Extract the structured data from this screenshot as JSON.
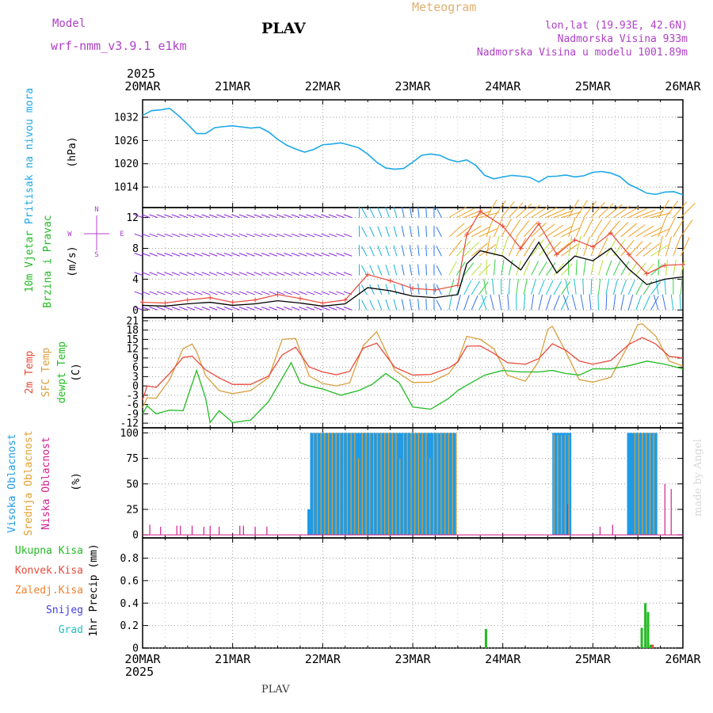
{
  "header": {
    "model_label": "Model",
    "model_name": "wrf-nmm_v3.9.1 e1km",
    "station": "PLAV",
    "title": "Meteogram",
    "lonlat": "lon,lat (19.93E, 42.6N)",
    "elevation": "Nadmorska Visina 933m",
    "model_elevation": "Nadmorska Visina u modelu 1001.89m",
    "year_top": "2025",
    "year_bottom": "2025",
    "footer_station": "PLAV",
    "credit": "made by Angel"
  },
  "colors": {
    "pressure": "#1ea8e8",
    "temp2m": "#e84a3c",
    "sfc": "#d9a040",
    "dewpt": "#22bb22",
    "label_purple": "#b040c8",
    "high_cloud": "#1e9be8",
    "mid_cloud": "#e0a030",
    "low_cloud": "#d02090",
    "rain_total": "#22bb22",
    "rain_conv": "#e84a3c",
    "rain_frozen": "#f08030",
    "snow": "#4040e0",
    "hail": "#20c0c0",
    "gust": "#e84a3c",
    "wind_speed_line": "#000000"
  },
  "chart_data": [
    {
      "type": "line",
      "panel": "pressure",
      "ylabel": "Pritisak na nivou mora",
      "unit": "(hPa)",
      "y_ticks": [
        1014,
        1020,
        1026,
        1032
      ],
      "ylim": [
        1008.7,
        1036.5
      ],
      "x_ticks": [
        "20MAR",
        "21MAR",
        "22MAR",
        "23MAR",
        "24MAR",
        "25MAR",
        "26MAR"
      ],
      "xlim_days": [
        0,
        6
      ],
      "series": [
        {
          "x": [
            0,
            0.1,
            0.2,
            0.3,
            0.4,
            0.5,
            0.6,
            0.7,
            0.8,
            0.9,
            1.0,
            1.1,
            1.2,
            1.3,
            1.4,
            1.5,
            1.6,
            1.7,
            1.8,
            1.9,
            2.0,
            2.1,
            2.2,
            2.3,
            2.4,
            2.5,
            2.6,
            2.7,
            2.8,
            2.9,
            3.0,
            3.1,
            3.2,
            3.3,
            3.4,
            3.5,
            3.6,
            3.7,
            3.8,
            3.9,
            4.0,
            4.1,
            4.2,
            4.3,
            4.4,
            4.5,
            4.6,
            4.7,
            4.8,
            4.9,
            5.0,
            5.1,
            5.2,
            5.3,
            5.4,
            5.5,
            5.6,
            5.7,
            5.8,
            5.9,
            6.0
          ],
          "values": [
            1032.5,
            1033.7,
            1033.9,
            1034.3,
            1032.4,
            1030.2,
            1027.8,
            1027.8,
            1029.3,
            1029.6,
            1029.8,
            1029.5,
            1029.2,
            1029.4,
            1028.2,
            1026.3,
            1024.8,
            1023.8,
            1023.0,
            1023.7,
            1024.9,
            1025.1,
            1025.4,
            1024.8,
            1024.1,
            1022.5,
            1020.4,
            1018.9,
            1018.6,
            1018.8,
            1020.4,
            1022.2,
            1022.5,
            1022.2,
            1021.1,
            1020.5,
            1021.0,
            1019.6,
            1017.0,
            1016.1,
            1016.6,
            1017.0,
            1016.8,
            1016.5,
            1015.3,
            1016.7,
            1016.8,
            1017.1,
            1016.6,
            1016.9,
            1017.8,
            1018.0,
            1017.6,
            1016.7,
            1014.7,
            1013.6,
            1012.4,
            1012.1,
            1012.7,
            1012.8,
            1012.0
          ]
        }
      ]
    },
    {
      "type": "line",
      "panel": "wind",
      "ylabel": "10m Vjetar",
      "ylabel2": "Brzina i Pravac",
      "unit": "(m/s)",
      "y_ticks": [
        0,
        4,
        8,
        12
      ],
      "ylim": [
        -1,
        13.3
      ],
      "compass": {
        "n": "N",
        "s": "S",
        "e": "E",
        "w": "W"
      },
      "series": [
        {
          "name": "wind speed",
          "x": [
            0,
            0.25,
            0.5,
            0.75,
            1.0,
            1.25,
            1.5,
            1.75,
            2.0,
            2.25,
            2.5,
            2.75,
            3.0,
            3.25,
            3.5,
            3.6,
            3.75,
            4.0,
            4.2,
            4.4,
            4.6,
            4.8,
            5.0,
            5.2,
            5.4,
            5.6,
            5.8,
            6.0
          ],
          "values": [
            0.6,
            0.5,
            0.8,
            1.0,
            0.6,
            0.8,
            1.2,
            0.9,
            0.5,
            0.8,
            2.9,
            2.5,
            1.8,
            1.6,
            2.0,
            6.0,
            7.7,
            7.0,
            5.2,
            8.8,
            4.8,
            7.0,
            6.4,
            8.0,
            5.3,
            3.3,
            4.0,
            4.3
          ]
        },
        {
          "name": "gust",
          "x": [
            0,
            0.25,
            0.5,
            0.75,
            1.0,
            1.25,
            1.5,
            1.75,
            2.0,
            2.25,
            2.5,
            2.75,
            3.0,
            3.25,
            3.5,
            3.6,
            3.75,
            4.0,
            4.2,
            4.4,
            4.6,
            4.8,
            5.0,
            5.2,
            5.4,
            5.6,
            5.8,
            6.0
          ],
          "values": [
            1.0,
            0.9,
            1.3,
            1.6,
            1.0,
            1.3,
            2.0,
            1.5,
            0.9,
            1.3,
            4.6,
            3.8,
            2.8,
            2.6,
            3.2,
            9.8,
            12.8,
            10.9,
            8.0,
            11.2,
            7.2,
            9.1,
            8.2,
            10.0,
            7.2,
            4.7,
            5.8,
            5.9
          ]
        }
      ]
    },
    {
      "type": "line",
      "panel": "temperature",
      "ylabels": [
        "2m Temp",
        "SFC Temp",
        "dewpt Temp"
      ],
      "unit": "(C)",
      "y_ticks": [
        -12,
        -9,
        -6,
        -3,
        0,
        3,
        6,
        9,
        12,
        15,
        18,
        21
      ],
      "ylim": [
        -13.5,
        22
      ],
      "series": [
        {
          "name": "2m Temp",
          "x": [
            0,
            0.05,
            0.15,
            0.3,
            0.45,
            0.55,
            0.7,
            0.85,
            1.0,
            1.2,
            1.4,
            1.55,
            1.7,
            1.85,
            2.0,
            2.15,
            2.3,
            2.45,
            2.6,
            2.8,
            3.0,
            3.2,
            3.4,
            3.5,
            3.6,
            3.75,
            3.9,
            4.05,
            4.25,
            4.4,
            4.55,
            4.7,
            4.85,
            5.0,
            5.2,
            5.4,
            5.55,
            5.7,
            5.85,
            6.0
          ],
          "values": [
            -4.5,
            0.0,
            -0.5,
            4.0,
            9.2,
            9.6,
            5.2,
            2.6,
            0.5,
            0.5,
            3.2,
            10.0,
            12.5,
            6.1,
            4.5,
            3.6,
            4.7,
            12.2,
            13.8,
            6.0,
            3.5,
            3.7,
            5.8,
            7.7,
            12.8,
            12.9,
            10.5,
            7.5,
            7.0,
            8.8,
            13.6,
            11.5,
            8.0,
            7.0,
            8.2,
            13.4,
            15.6,
            13.5,
            9.5,
            9.0
          ]
        },
        {
          "name": "SFC Temp",
          "x": [
            0,
            0.05,
            0.15,
            0.3,
            0.45,
            0.55,
            0.6,
            0.7,
            0.85,
            1.0,
            1.2,
            1.4,
            1.55,
            1.7,
            1.85,
            2.0,
            2.15,
            2.3,
            2.45,
            2.6,
            2.8,
            3.0,
            3.2,
            3.4,
            3.5,
            3.6,
            3.75,
            3.9,
            4.05,
            4.25,
            4.4,
            4.5,
            4.55,
            4.7,
            4.85,
            5.0,
            5.2,
            5.4,
            5.5,
            5.55,
            5.7,
            5.85,
            6.0
          ],
          "values": [
            -7.0,
            -3.8,
            -4.0,
            2.0,
            12.0,
            13.5,
            11.0,
            3.3,
            -1.5,
            -2.5,
            -1.5,
            2.7,
            15.0,
            15.3,
            3.2,
            0.8,
            0.0,
            1.0,
            13.0,
            17.5,
            5.0,
            1.1,
            1.2,
            4.0,
            8.0,
            16.0,
            15.0,
            12.0,
            3.5,
            1.5,
            8.0,
            18.3,
            19.2,
            11.0,
            2.0,
            1.2,
            2.8,
            13.5,
            19.8,
            20.0,
            16.0,
            8.0,
            6.4
          ]
        },
        {
          "name": "dewpt Temp",
          "x": [
            0,
            0.05,
            0.15,
            0.3,
            0.45,
            0.6,
            0.7,
            0.75,
            0.85,
            1.0,
            1.2,
            1.4,
            1.5,
            1.65,
            1.75,
            1.85,
            2.0,
            2.2,
            2.4,
            2.55,
            2.7,
            2.85,
            3.0,
            3.2,
            3.4,
            3.5,
            3.6,
            3.8,
            4.0,
            4.2,
            4.4,
            4.55,
            4.7,
            4.85,
            5.0,
            5.2,
            5.4,
            5.6,
            5.8,
            6.0
          ],
          "values": [
            -9.0,
            -6.4,
            -9.0,
            -7.8,
            -8.0,
            5.0,
            -4.0,
            -11.8,
            -8.0,
            -11.8,
            -11.0,
            -5.0,
            0.0,
            7.5,
            1.0,
            0.0,
            -1.0,
            -3.0,
            -1.5,
            0.5,
            4.0,
            1.0,
            -6.8,
            -7.5,
            -4.0,
            -1.5,
            0.2,
            3.5,
            5.0,
            4.5,
            4.5,
            5.0,
            4.0,
            3.5,
            5.5,
            5.5,
            6.5,
            8.0,
            7.0,
            5.5
          ]
        }
      ]
    },
    {
      "type": "bar",
      "panel": "clouds",
      "ylabels": [
        "Visoka Oblacnost",
        "Srednja Oblacnost",
        "Niska Oblacnost"
      ],
      "unit": "(%)",
      "y_ticks": [
        0,
        25,
        50,
        75,
        100
      ],
      "ylim": [
        -3,
        105
      ],
      "series": [
        {
          "name": "Visoka Oblacnost",
          "blocks": [
            [
              1.83,
              1.86,
              25
            ],
            [
              1.86,
              3.48,
              100
            ],
            [
              4.55,
              4.75,
              100
            ],
            [
              5.38,
              5.7,
              100
            ]
          ]
        },
        {
          "name": "Srednja Oblacnost",
          "blocks": [
            [
              1.88,
              3.48,
              100
            ],
            [
              4.55,
              4.73,
              98
            ],
            [
              5.45,
              5.7,
              100
            ]
          ]
        },
        {
          "name": "Niska Oblacnost",
          "spikes": [
            [
              0.08,
              10
            ],
            [
              0.2,
              8
            ],
            [
              0.38,
              9
            ],
            [
              0.42,
              9
            ],
            [
              0.55,
              9
            ],
            [
              0.68,
              8
            ],
            [
              0.75,
              9
            ],
            [
              0.85,
              8
            ],
            [
              1.08,
              9
            ],
            [
              1.12,
              9
            ],
            [
              1.25,
              8
            ],
            [
              1.38,
              8
            ],
            [
              4.72,
              30
            ],
            [
              5.08,
              8
            ],
            [
              5.22,
              10
            ],
            [
              5.8,
              50
            ],
            [
              5.87,
              45
            ]
          ]
        }
      ]
    },
    {
      "type": "bar",
      "panel": "precipitation",
      "ylabels": [
        "Ukupna Kisa",
        "Konvek.Kisa",
        "Zaledj.Kisa",
        "Snijeg",
        "Grad"
      ],
      "unit": "1hr Precip (mm)",
      "y_ticks": [
        0,
        0.2,
        0.4,
        0.6,
        0.8
      ],
      "ylim": [
        0,
        0.98
      ],
      "series": [
        {
          "name": "Ukupna Kisa",
          "x": [
            3.8,
            5.53,
            5.57,
            5.6,
            5.63
          ],
          "values": [
            0.17,
            0.18,
            0.4,
            0.32,
            0.03
          ]
        },
        {
          "name": "Konvek.Kisa",
          "x": [
            5.65
          ],
          "values": [
            0.03
          ]
        }
      ]
    }
  ]
}
